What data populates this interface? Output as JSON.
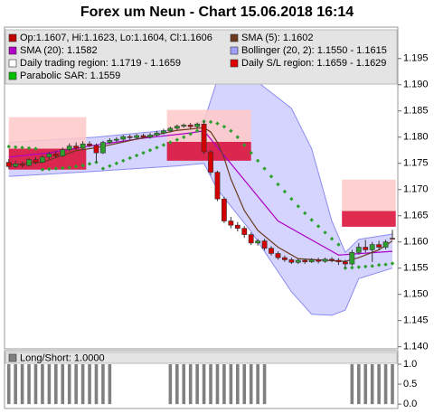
{
  "chart_data": [
    {
      "type": "candlestick",
      "title": "Forex um Neun - Chart 15.06.2018 16:14",
      "up_color": "#2e9e2e",
      "down_color": "#d40000",
      "open": [
        1.1752,
        1.1744,
        1.1749,
        1.1746,
        1.1757,
        1.1752,
        1.1762,
        1.1768,
        1.1764,
        1.1776,
        1.1783,
        1.1779,
        1.1787,
        1.1784,
        1.177,
        1.179,
        1.1794,
        1.1796,
        1.1801,
        1.1799,
        1.1803,
        1.18,
        1.1804,
        1.1808,
        1.1812,
        1.1817,
        1.1821,
        1.1823,
        1.182,
        1.1825,
        1.1772,
        1.1733,
        1.1682,
        1.164,
        1.1632,
        1.1626,
        1.1614,
        1.1598,
        1.1602,
        1.1588,
        1.1578,
        1.157,
        1.1566,
        1.1561,
        1.1565,
        1.1562,
        1.1566,
        1.1563,
        1.1567,
        1.1565,
        1.1562,
        1.1558,
        1.158,
        1.159,
        1.1585,
        1.1595,
        1.159,
        1.1607
      ],
      "high": [
        1.1758,
        1.1755,
        1.1753,
        1.176,
        1.1762,
        1.1766,
        1.1772,
        1.1774,
        1.178,
        1.1788,
        1.179,
        1.1792,
        1.1792,
        1.1788,
        1.1793,
        1.1798,
        1.18,
        1.1804,
        1.1805,
        1.1806,
        1.1807,
        1.1808,
        1.1812,
        1.1816,
        1.182,
        1.1824,
        1.1826,
        1.1827,
        1.1828,
        1.183,
        1.1775,
        1.1736,
        1.1686,
        1.1648,
        1.1638,
        1.163,
        1.1618,
        1.1606,
        1.1606,
        1.1592,
        1.1582,
        1.1574,
        1.157,
        1.1568,
        1.1568,
        1.1569,
        1.157,
        1.157,
        1.1571,
        1.1569,
        1.1566,
        1.1585,
        1.1598,
        1.1604,
        1.16,
        1.1602,
        1.1604,
        1.1623
      ],
      "low": [
        1.174,
        1.1741,
        1.1742,
        1.1744,
        1.1748,
        1.175,
        1.1758,
        1.176,
        1.1762,
        1.1773,
        1.1776,
        1.1776,
        1.1781,
        1.1752,
        1.1768,
        1.1787,
        1.179,
        1.1793,
        1.1795,
        1.1796,
        1.1797,
        1.1797,
        1.1801,
        1.1805,
        1.1809,
        1.1814,
        1.1818,
        1.1816,
        1.1817,
        1.1768,
        1.1728,
        1.1678,
        1.1636,
        1.1626,
        1.162,
        1.1608,
        1.1594,
        1.1593,
        1.1584,
        1.1574,
        1.1566,
        1.1562,
        1.1558,
        1.1558,
        1.1558,
        1.156,
        1.1559,
        1.156,
        1.1561,
        1.1556,
        1.155,
        1.1555,
        1.1576,
        1.158,
        1.1562,
        1.1584,
        1.1586,
        1.1604
      ],
      "close": [
        1.1744,
        1.1749,
        1.1746,
        1.1757,
        1.1752,
        1.1762,
        1.1768,
        1.1764,
        1.1776,
        1.1783,
        1.1779,
        1.1787,
        1.1784,
        1.177,
        1.179,
        1.1794,
        1.1796,
        1.1801,
        1.1799,
        1.1803,
        1.18,
        1.1804,
        1.1808,
        1.1812,
        1.1817,
        1.1821,
        1.1823,
        1.182,
        1.1825,
        1.1772,
        1.1733,
        1.1682,
        1.164,
        1.1632,
        1.1626,
        1.1614,
        1.1598,
        1.1602,
        1.1588,
        1.1578,
        1.157,
        1.1566,
        1.1561,
        1.1565,
        1.1562,
        1.1566,
        1.1563,
        1.1567,
        1.1565,
        1.1562,
        1.1558,
        1.158,
        1.159,
        1.1585,
        1.1595,
        1.159,
        1.16,
        1.1606
      ],
      "bollinger": {
        "fill": "#ccccff",
        "stroke": "#8c8cf0",
        "x": [
          0,
          13,
          25,
          29,
          31,
          36,
          42,
          45,
          48,
          50,
          52,
          57
        ],
        "upper": [
          1.179,
          1.18,
          1.1815,
          1.183,
          1.191,
          1.1915,
          1.1855,
          1.1778,
          1.164,
          1.158,
          1.1605,
          1.1615
        ],
        "lower": [
          1.1725,
          1.1735,
          1.1745,
          1.175,
          1.17,
          1.162,
          1.1505,
          1.1462,
          1.146,
          1.147,
          1.153,
          1.155
        ]
      },
      "regions": [
        {
          "start": 0,
          "end": 11.5,
          "trading": [
            1.1838,
            1.1778
          ],
          "sl": [
            1.1778,
            1.1738
          ]
        },
        {
          "start": 23.5,
          "end": 36,
          "trading": [
            1.1852,
            1.1791
          ],
          "sl": [
            1.1791,
            1.1755
          ]
        },
        {
          "start": 49.5,
          "end": 57.5,
          "trading": [
            1.1719,
            1.1659
          ],
          "sl": [
            1.1659,
            1.1629
          ]
        }
      ],
      "trading_color": "#ffc8c8",
      "sl_color": "#dc143c",
      "lines": [
        {
          "color": "#b000c8",
          "x": [
            0,
            6,
            13,
            20,
            27,
            29,
            40,
            49,
            57
          ],
          "values": [
            1.1762,
            1.177,
            1.1785,
            1.1798,
            1.1808,
            1.1812,
            1.164,
            1.1575,
            1.1582
          ]
        },
        {
          "color": "#6b3a1e",
          "x": [
            0,
            5,
            10,
            13,
            15,
            20,
            25,
            29,
            30,
            31,
            32,
            33,
            35,
            37,
            40,
            43,
            47,
            50,
            52,
            55,
            57
          ],
          "values": [
            1.1747,
            1.1752,
            1.1774,
            1.178,
            1.1785,
            1.1799,
            1.1813,
            1.1818,
            1.181,
            1.179,
            1.176,
            1.172,
            1.166,
            1.1622,
            1.159,
            1.1568,
            1.1565,
            1.1563,
            1.157,
            1.1585,
            1.1602
          ]
        }
      ],
      "sar": {
        "color": "#2ca02c",
        "values": [
          1.1782,
          1.1781,
          1.178,
          1.1779,
          1.1778,
          1.1738,
          1.1739,
          1.174,
          1.1741,
          1.1742,
          1.1744,
          1.1746,
          1.1749,
          1.1752,
          1.174,
          1.1745,
          1.175,
          1.1755,
          1.176,
          1.1765,
          1.177,
          1.1775,
          1.178,
          1.1785,
          1.179,
          1.1795,
          1.18,
          1.1806,
          1.1812,
          1.183,
          1.1829,
          1.1826,
          1.182,
          1.1812,
          1.18,
          1.1785,
          1.177,
          1.1755,
          1.174,
          1.1725,
          1.171,
          1.1696,
          1.1682,
          1.1668,
          1.1655,
          1.1642,
          1.163,
          1.1618,
          1.1606,
          1.1595,
          1.155,
          1.1551,
          1.1552,
          1.1553,
          1.1554,
          1.1556,
          1.1557,
          1.1559
        ]
      },
      "legend": [
        {
          "label": "Op:1.1607, Hi:1.1623, Lo:1.1604, Cl:1.1606",
          "color": "#c00000"
        },
        {
          "label": "SMA (5): 1.1602",
          "color": "#6b3a1e"
        },
        {
          "label": "SMA (20): 1.1582",
          "color": "#b000c8"
        },
        {
          "label": "Bollinger (20, 2): 1.1550 - 1.1615",
          "color": "#a0a0ff"
        },
        {
          "label": "Daily trading region: 1.1719 - 1.1659",
          "color": "#ffffff"
        },
        {
          "label": "Daily S/L region: 1.1659 - 1.1629",
          "color": "#e00000"
        },
        {
          "label": "Parabolic SAR: 1.1559",
          "color": "#00c000"
        }
      ],
      "ylim": [
        1.1396,
        1.201
      ],
      "yticks": [
        {
          "value": 1.14,
          "label": "1.140"
        },
        1.145,
        {
          "value": 1.15,
          "label": "1.150"
        },
        1.155,
        {
          "value": 1.16,
          "label": "1.160"
        },
        1.165,
        {
          "value": 1.17,
          "label": "1.170"
        },
        1.175,
        {
          "value": 1.18,
          "label": "1.180"
        },
        1.185,
        {
          "value": 1.19,
          "label": "1.190"
        },
        1.195
      ]
    },
    {
      "type": "bar",
      "legend": "Long/Short: 1.0000",
      "color": "#808080",
      "values": [
        1,
        1,
        1,
        1,
        1,
        1,
        1,
        1,
        1,
        1,
        1,
        1,
        1,
        1,
        1,
        1,
        0,
        0,
        0,
        0,
        0,
        0,
        0,
        0,
        1,
        1,
        1,
        1,
        1,
        1,
        1,
        1,
        1,
        1,
        1,
        1,
        1,
        1,
        1,
        0,
        0,
        0,
        0,
        0,
        0,
        0,
        0,
        0,
        0,
        0,
        0,
        1,
        1,
        1,
        1,
        1,
        1,
        1
      ],
      "ylim": [
        -0.11,
        1.34
      ],
      "yticks": [
        {
          "value": 0,
          "label": "0.0"
        },
        {
          "value": 0.5,
          "label": "0.5"
        },
        {
          "value": 1,
          "label": "1.0"
        }
      ]
    }
  ]
}
